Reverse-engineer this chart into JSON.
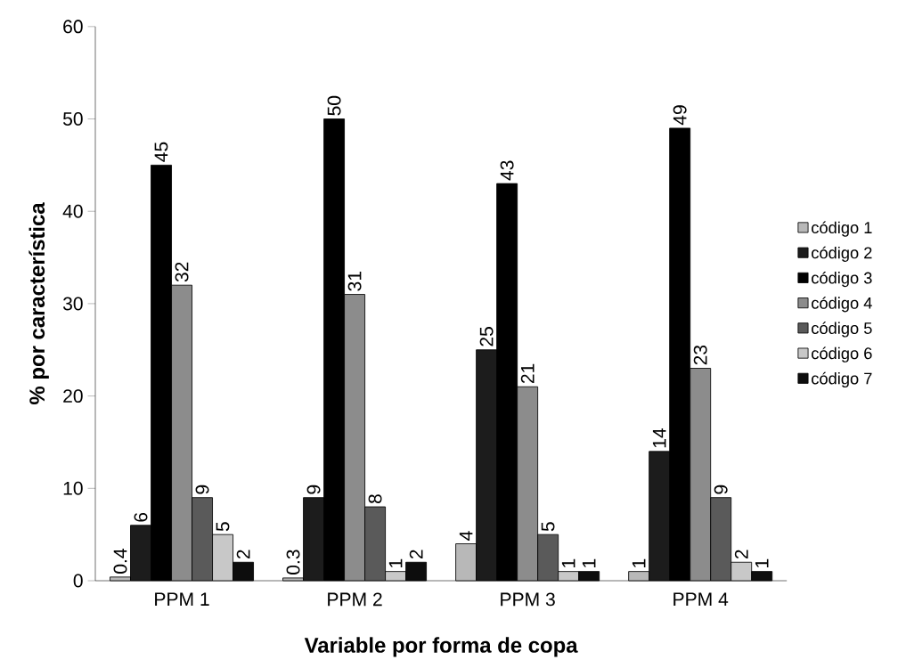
{
  "chart_data": {
    "type": "bar",
    "xlabel": "Variable por forma de copa",
    "ylabel": "% por característica",
    "categories": [
      "PPM 1",
      "PPM 2",
      "PPM 3",
      "PPM 4"
    ],
    "series": [
      {
        "name": "código 1",
        "color": "#b8b8b8",
        "values": [
          0.4,
          0.3,
          4,
          1
        ]
      },
      {
        "name": "código 2",
        "color": "#1c1c1c",
        "values": [
          6,
          9,
          25,
          14
        ]
      },
      {
        "name": "código 3",
        "color": "#000000",
        "values": [
          45,
          50,
          43,
          49
        ]
      },
      {
        "name": "código 4",
        "color": "#8c8c8c",
        "values": [
          32,
          31,
          21,
          23
        ]
      },
      {
        "name": "código 5",
        "color": "#5a5a5a",
        "values": [
          9,
          8,
          5,
          9
        ]
      },
      {
        "name": "código 6",
        "color": "#c8c8c8",
        "values": [
          5,
          1,
          1,
          2
        ]
      },
      {
        "name": "código 7",
        "color": "#0d0d0d",
        "values": [
          2,
          2,
          1,
          1
        ]
      }
    ],
    "ylim": [
      0,
      60
    ],
    "yticks": [
      0,
      10,
      20,
      30,
      40,
      50,
      60
    ],
    "data_labels": true,
    "legend": "right",
    "grid": false
  }
}
